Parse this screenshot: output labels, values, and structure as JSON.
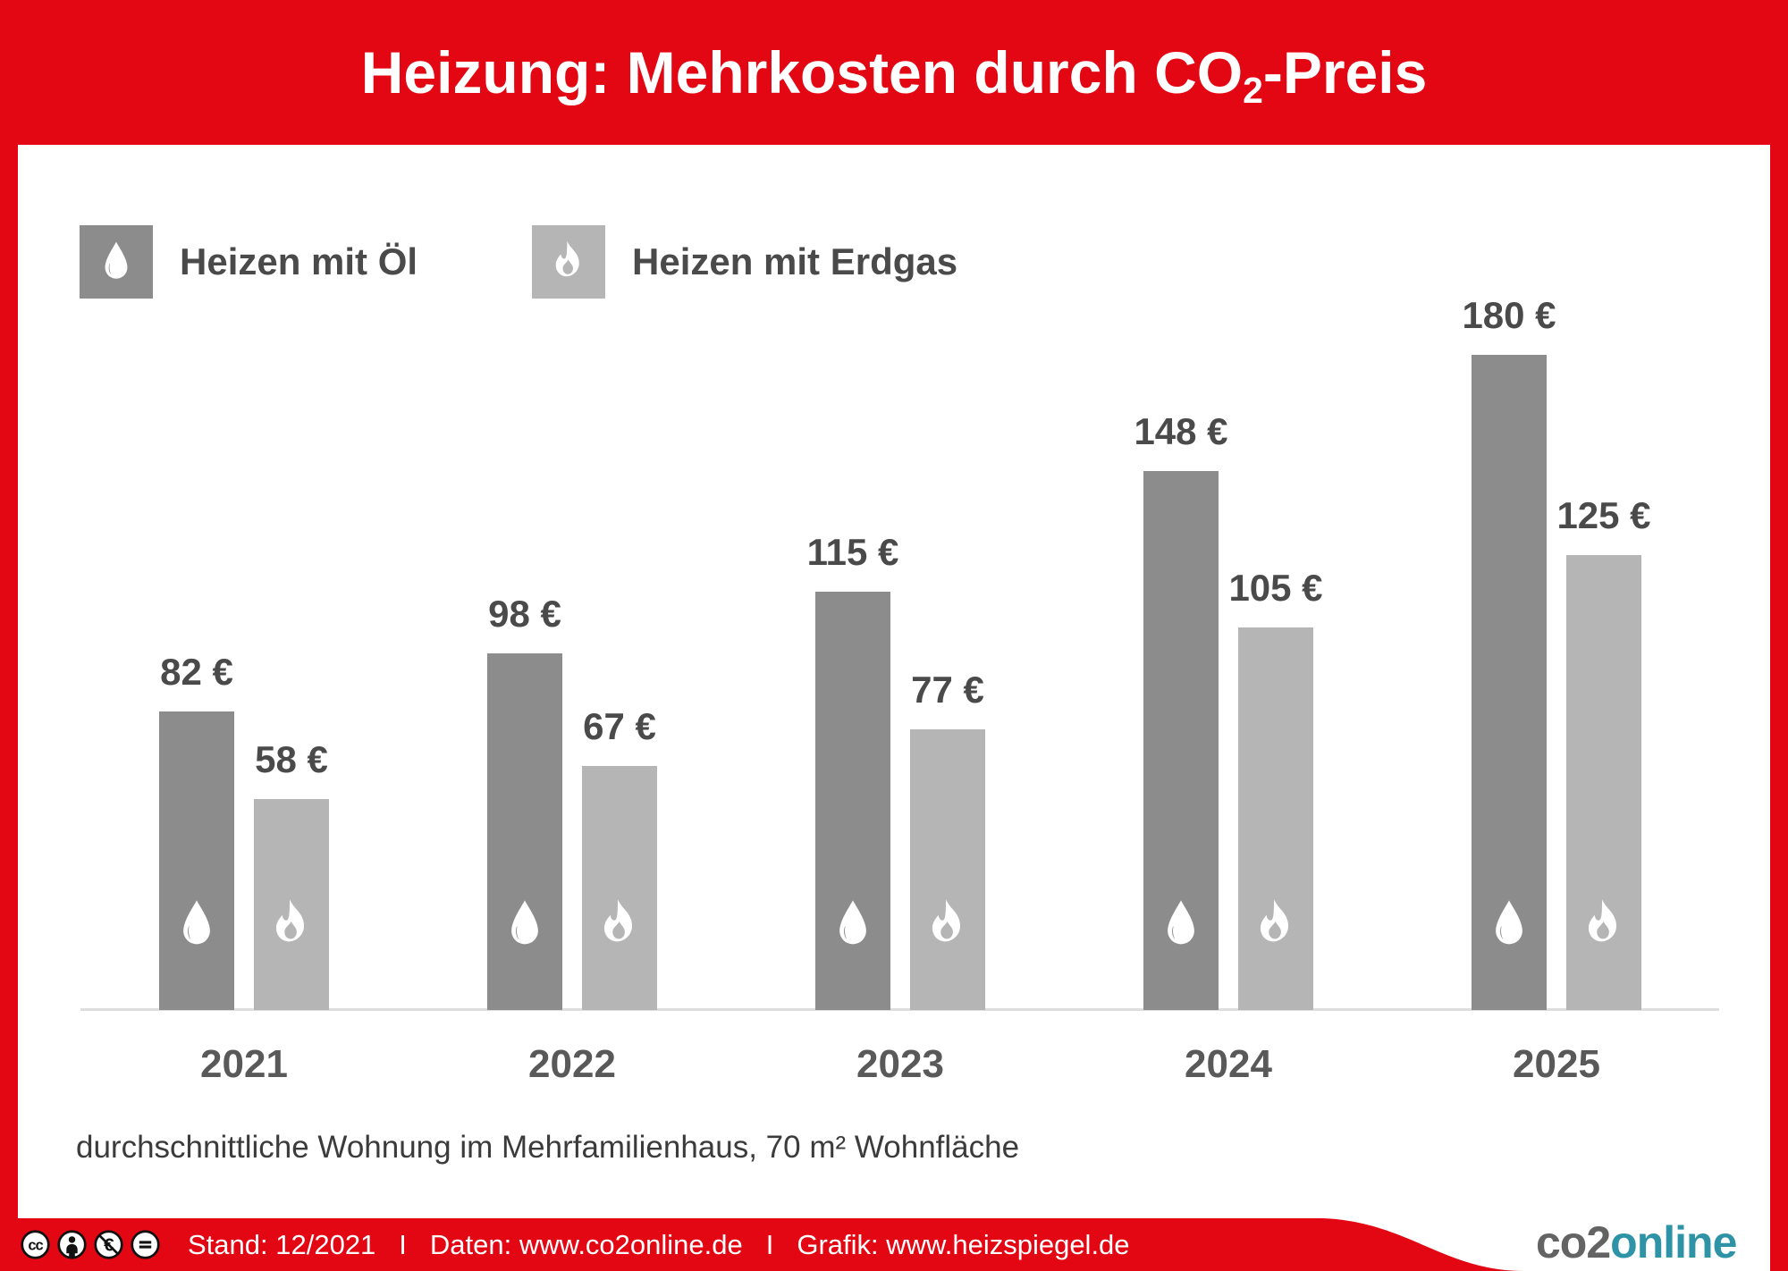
{
  "header": {
    "title_prefix": "Heizung: Mehrkosten durch CO",
    "title_subscript": "2",
    "title_suffix": "-Preis"
  },
  "legend": {
    "items": [
      {
        "label": "Heizen mit Öl",
        "icon": "oil-drop-icon",
        "color": "#8c8c8c"
      },
      {
        "label": "Heizen mit Erdgas",
        "icon": "flame-icon",
        "color": "#b5b5b5"
      }
    ]
  },
  "chart_data": {
    "type": "bar",
    "title": "Heizung: Mehrkosten durch CO2-Preis",
    "categories": [
      "2021",
      "2022",
      "2023",
      "2024",
      "2025"
    ],
    "series": [
      {
        "name": "Heizen mit Öl",
        "icon": "oil-drop-icon",
        "color": "#8c8c8c",
        "values": [
          82,
          98,
          115,
          148,
          180
        ],
        "labels": [
          "82 €",
          "98 €",
          "115 €",
          "148 €",
          "180 €"
        ]
      },
      {
        "name": "Heizen mit Erdgas",
        "icon": "flame-icon",
        "color": "#b5b5b5",
        "values": [
          58,
          67,
          77,
          105,
          125
        ],
        "labels": [
          "58 €",
          "67 €",
          "77 €",
          "105 €",
          "125 €"
        ]
      }
    ],
    "unit": "€",
    "xlabel": "",
    "ylabel": "",
    "grid": false,
    "y_axis_visible": false,
    "baseline_axis": true,
    "legend_position": "top-left"
  },
  "footnote": "durchschnittliche Wohnung im Mehrfamilienhaus, 70 m² Wohnfläche",
  "footer": {
    "license_icons": [
      "cc-icon",
      "cc-by-person-icon",
      "cc-nc-euro-icon",
      "cc-nd-equals-icon"
    ],
    "stand": "Stand: 12/2021",
    "daten": "Daten: www.co2online.de",
    "grafik": "Grafik: www.heizspiegel.de",
    "separator": "I",
    "logo_part1": "co2",
    "logo_part2": "online"
  },
  "colors": {
    "accent_red": "#e30613",
    "bar_dark": "#8c8c8c",
    "bar_light": "#b5b5b5",
    "value_text": "#4a4a4a",
    "year_text": "#595959",
    "axis_line": "#dedede",
    "logo_gray": "#646363",
    "logo_teal": "#2e93a6"
  }
}
